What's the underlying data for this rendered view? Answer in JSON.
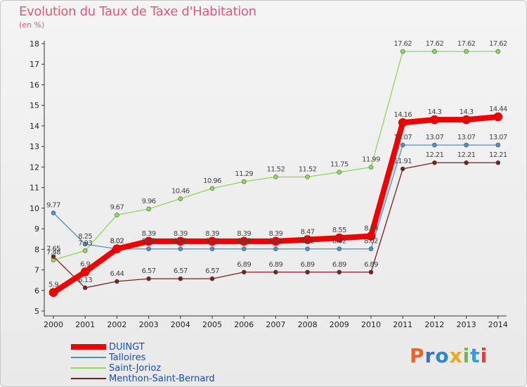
{
  "chart_data": {
    "type": "line",
    "title": "Evolution du Taux de Taxe d'Habitation",
    "subtitle": "(en %)",
    "x": [
      "2000",
      "2001",
      "2002",
      "2003",
      "2004",
      "2005",
      "2006",
      "2007",
      "2008",
      "2009",
      "2010",
      "2011",
      "2012",
      "2013",
      "2014"
    ],
    "ylim": [
      5,
      18
    ],
    "yticks": [
      "5",
      "6",
      "7",
      "8",
      "9",
      "10",
      "11",
      "12",
      "13",
      "14",
      "15",
      "16",
      "17",
      "18"
    ],
    "grid": false,
    "legend_position": "bottom-left",
    "series": [
      {
        "name": "DUINGT",
        "color": "#ee0000",
        "width": 8,
        "values": [
          5.9,
          6.9,
          8.02,
          8.39,
          8.39,
          8.39,
          8.39,
          8.39,
          8.47,
          8.55,
          8.64,
          14.16,
          14.3,
          14.3,
          14.44
        ],
        "labels": [
          "5.9",
          "6.9",
          "8.02",
          "8.39",
          "8.39",
          "8.39",
          "8.39",
          "8.39",
          "8.47",
          "8.55",
          "8.64",
          "14.16",
          "14.3",
          "14.3",
          "14.44"
        ]
      },
      {
        "name": "Talloires",
        "color": "#4d8fcc",
        "width": 1.3,
        "values": [
          9.77,
          8.25,
          8.02,
          8.02,
          8.02,
          8.02,
          8.02,
          8.02,
          8.02,
          8.02,
          8.02,
          13.07,
          13.07,
          13.07,
          13.07
        ],
        "labels": [
          "9.77",
          "8.25",
          "8.02",
          "8.02",
          "8.02",
          "8.02",
          "8.02",
          "8.02",
          "8.02",
          "8.02",
          "8.02",
          "13.07",
          "13.07",
          "13.07",
          "13.07"
        ]
      },
      {
        "name": "Saint-Jorioz",
        "color": "#8ed85a",
        "width": 1.3,
        "values": [
          7.48,
          7.93,
          9.67,
          9.96,
          10.46,
          10.96,
          11.29,
          11.52,
          11.52,
          11.75,
          11.99,
          17.62,
          17.62,
          17.62,
          17.62
        ],
        "labels": [
          "7.48",
          "7.93",
          "9.67",
          "9.96",
          "10.46",
          "10.96",
          "11.29",
          "11.52",
          "11.52",
          "11.75",
          "11.99",
          "17.62",
          "17.62",
          "17.62",
          "17.62"
        ]
      },
      {
        "name": "Menthon-Saint-Bernard",
        "color": "#7a1f1f",
        "width": 1.3,
        "values": [
          7.65,
          6.13,
          6.44,
          6.57,
          6.57,
          6.57,
          6.89,
          6.89,
          6.89,
          6.89,
          6.89,
          11.91,
          12.21,
          12.21,
          12.21
        ],
        "labels": [
          "7.65",
          "6.13",
          "6.44",
          "6.57",
          "6.57",
          "6.57",
          "6.89",
          "6.89",
          "6.89",
          "6.89",
          "6.89",
          "11.91",
          "12.21",
          "12.21",
          "12.21"
        ]
      }
    ]
  },
  "logo_text": "Proxiti"
}
